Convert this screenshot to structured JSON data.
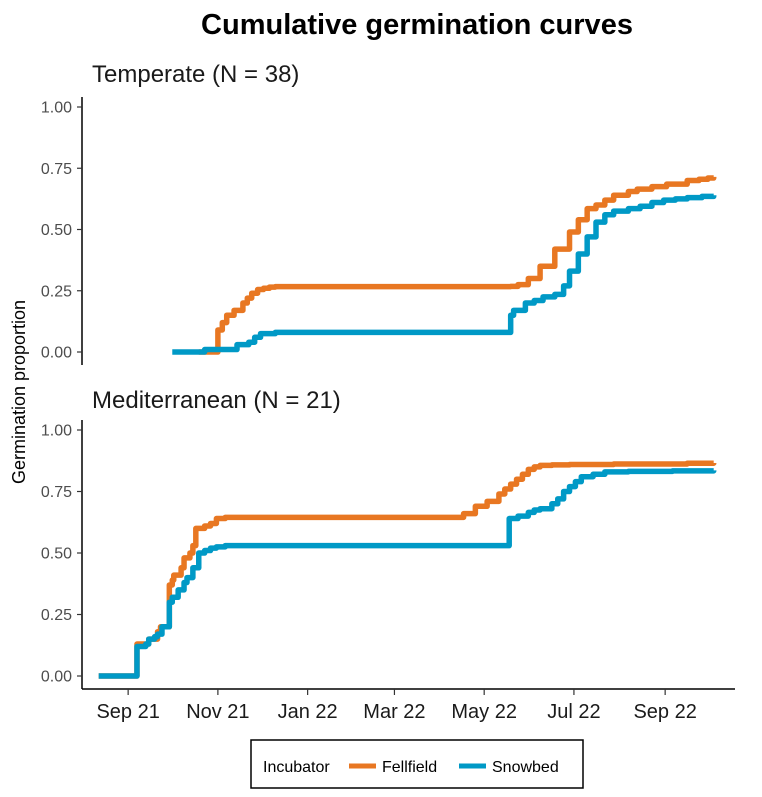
{
  "chart_data": {
    "type": "line",
    "title": "Cumulative germination curves",
    "ylabel": "Germination proportion",
    "xlabel": "",
    "ylim": [
      0,
      1
    ],
    "yticks": [
      0.0,
      0.25,
      0.5,
      0.75,
      1.0
    ],
    "ytick_labels": [
      "0.00",
      "0.25",
      "0.50",
      "0.75",
      "1.00"
    ],
    "x_unit": "days since 2021-09-01",
    "xlim": [
      -30,
      405
    ],
    "xticks": [
      0,
      61,
      122,
      181,
      242,
      303,
      365
    ],
    "xtick_labels": [
      "Sep 21",
      "Nov 21",
      "Jan 22",
      "Mar 22",
      "May 22",
      "Jul 22",
      "Sep 22"
    ],
    "grid": false,
    "legend": {
      "title": "Incubator",
      "position": "bottom",
      "entries": [
        {
          "name": "Fellfield",
          "color": "#E87722"
        },
        {
          "name": "Snowbed",
          "color": "#0099C6"
        }
      ]
    },
    "panels": [
      {
        "title": "Temperate (N = 38)",
        "series": [
          {
            "name": "Fellfield",
            "color": "#E87722",
            "x": [
              48,
              60,
              61,
              64,
              64,
              67,
              67,
              72,
              72,
              78,
              78,
              81,
              84,
              88,
              92,
              96,
              100,
              110,
              140,
              180,
              230,
              260,
              265,
              272,
              280,
              290,
              300,
              306,
              312,
              318,
              324,
              330,
              340,
              346,
              356,
              366,
              380,
              388,
              394,
              398
            ],
            "y": [
              0.0,
              0.0,
              0.09,
              0.09,
              0.12,
              0.12,
              0.15,
              0.15,
              0.17,
              0.17,
              0.2,
              0.22,
              0.24,
              0.255,
              0.26,
              0.265,
              0.267,
              0.267,
              0.267,
              0.267,
              0.267,
              0.268,
              0.275,
              0.3,
              0.35,
              0.42,
              0.49,
              0.54,
              0.585,
              0.6,
              0.62,
              0.64,
              0.655,
              0.665,
              0.675,
              0.685,
              0.7,
              0.705,
              0.71,
              0.715
            ]
          },
          {
            "name": "Snowbed",
            "color": "#0099C6",
            "x": [
              30,
              50,
              52,
              72,
              74,
              82,
              86,
              90,
              100,
              160,
              220,
              258,
              260,
              262,
              270,
              276,
              282,
              290,
              296,
              300,
              306,
              312,
              318,
              324,
              330,
              340,
              348,
              356,
              364,
              372,
              380,
              390,
              398
            ],
            "y": [
              0.0,
              0.0,
              0.01,
              0.01,
              0.03,
              0.04,
              0.06,
              0.075,
              0.08,
              0.08,
              0.08,
              0.08,
              0.15,
              0.17,
              0.2,
              0.21,
              0.225,
              0.235,
              0.27,
              0.33,
              0.4,
              0.47,
              0.53,
              0.56,
              0.575,
              0.585,
              0.595,
              0.61,
              0.62,
              0.625,
              0.63,
              0.635,
              0.64
            ]
          }
        ]
      },
      {
        "title": "Mediterranean (N = 21)",
        "series": [
          {
            "name": "Fellfield",
            "color": "#E87722",
            "x": [
              -20,
              5,
              6,
              12,
              14,
              20,
              22,
              26,
              28,
              30,
              31,
              36,
              38,
              42,
              44,
              46,
              52,
              56,
              60,
              66,
              80,
              120,
              180,
              222,
              228,
              236,
              244,
              252,
              256,
              260,
              264,
              268,
              272,
              276,
              280,
              288,
              300,
              330,
              380,
              398
            ],
            "y": [
              0.0,
              0.0,
              0.13,
              0.13,
              0.15,
              0.18,
              0.2,
              0.2,
              0.37,
              0.39,
              0.41,
              0.44,
              0.48,
              0.5,
              0.53,
              0.6,
              0.61,
              0.62,
              0.64,
              0.645,
              0.645,
              0.645,
              0.645,
              0.645,
              0.66,
              0.69,
              0.71,
              0.74,
              0.76,
              0.78,
              0.8,
              0.82,
              0.84,
              0.85,
              0.856,
              0.858,
              0.86,
              0.862,
              0.865,
              0.866
            ]
          },
          {
            "name": "Snowbed",
            "color": "#0099C6",
            "x": [
              -20,
              5,
              6,
              12,
              14,
              18,
              20,
              23,
              26,
              28,
              30,
              34,
              38,
              40,
              44,
              48,
              52,
              56,
              60,
              66,
              100,
              160,
              220,
              258,
              259,
              265,
              272,
              276,
              280,
              288,
              292,
              296,
              300,
              304,
              308,
              316,
              324,
              340,
              370,
              398
            ],
            "y": [
              0.0,
              0.0,
              0.12,
              0.13,
              0.15,
              0.16,
              0.17,
              0.2,
              0.2,
              0.3,
              0.32,
              0.35,
              0.38,
              0.4,
              0.44,
              0.5,
              0.51,
              0.52,
              0.525,
              0.53,
              0.53,
              0.53,
              0.53,
              0.53,
              0.64,
              0.65,
              0.665,
              0.675,
              0.68,
              0.7,
              0.72,
              0.75,
              0.77,
              0.79,
              0.81,
              0.82,
              0.83,
              0.832,
              0.834,
              0.836
            ]
          }
        ]
      }
    ]
  }
}
